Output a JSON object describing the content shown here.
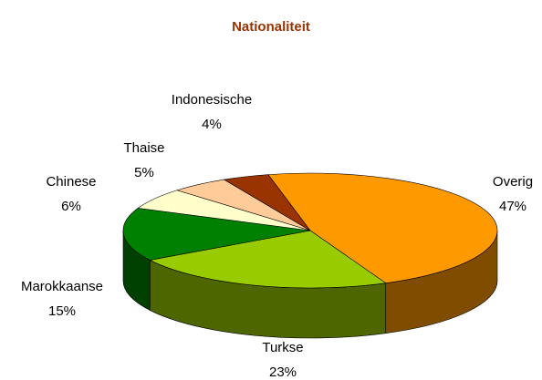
{
  "chart_data": {
    "type": "pie",
    "title": "Nationaliteit",
    "categories": [
      "Overig",
      "Turkse",
      "Marokkaanse",
      "Chinese",
      "Thaise",
      "Indonesische"
    ],
    "values": [
      47,
      23,
      15,
      6,
      5,
      4
    ],
    "value_labels": [
      "47%",
      "23%",
      "15%",
      "6%",
      "5%",
      "4%"
    ],
    "colors": [
      "#ff9900",
      "#99cc00",
      "#008000",
      "#ffffcc",
      "#ffcc99",
      "#993300"
    ]
  }
}
